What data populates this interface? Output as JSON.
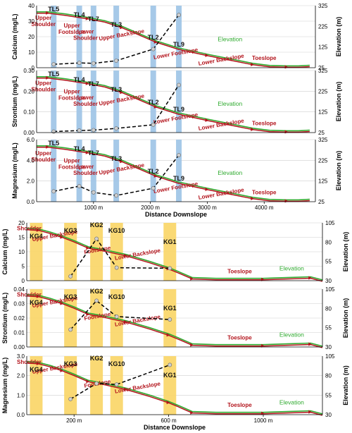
{
  "colors": {
    "elevation": "#2eaa2e",
    "profile": "#b3141c",
    "data_line": "#000000",
    "top_band": "#9cc3e6",
    "bottom_band": "#f9d565"
  },
  "chart_data": [
    {
      "type": "line",
      "group": "top",
      "ylabel": "Calcium (mg/L)",
      "ylabel_right": "Elevation (m)",
      "xlim": [
        0,
        4900
      ],
      "ylim": [
        0,
        40
      ],
      "yticks": [
        0,
        10,
        20,
        30,
        40
      ],
      "ylim_right": [
        25,
        325
      ],
      "yticks_right": [
        25,
        125,
        225,
        325
      ],
      "sites": [
        {
          "name": "TL5",
          "x": 300
        },
        {
          "name": "TL4",
          "x": 750
        },
        {
          "name": "TL7",
          "x": 1000
        },
        {
          "name": "TL3",
          "x": 1400
        },
        {
          "name": "TL2",
          "x": 2050
        },
        {
          "name": "TL9",
          "x": 2500
        }
      ],
      "series": [
        {
          "values": [
            [
              300,
              2.2
            ],
            [
              750,
              3.1
            ],
            [
              1000,
              2.8
            ],
            [
              1400,
              4.5
            ],
            [
              2050,
              12.0
            ],
            [
              2500,
              34.0
            ]
          ]
        }
      ],
      "elevation": [
        [
          0,
          295
        ],
        [
          200,
          295
        ],
        [
          500,
          285
        ],
        [
          900,
          268
        ],
        [
          1200,
          252
        ],
        [
          1500,
          225
        ],
        [
          1800,
          190
        ],
        [
          2100,
          155
        ],
        [
          2500,
          120
        ],
        [
          3000,
          90
        ],
        [
          3400,
          68
        ],
        [
          3800,
          46
        ],
        [
          4100,
          36
        ],
        [
          4400,
          34
        ],
        [
          4600,
          34
        ],
        [
          4800,
          37
        ]
      ],
      "zone_labels": [
        {
          "text": "Upper Shoulder",
          "x": 120,
          "y": 31
        },
        {
          "text": "Upper Footslope",
          "x": 620,
          "y": 26
        },
        {
          "text": "Lower Shoulder",
          "x": 860,
          "y": 22
        },
        {
          "text": "Upper Backslope",
          "x": 1500,
          "y": 20
        },
        {
          "text": "Lower Footslope",
          "x": 2450,
          "y": 8
        },
        {
          "text": "Lower Backslope",
          "x": 3250,
          "y": 4
        },
        {
          "text": "Toeslope",
          "x": 4000,
          "y": 5
        }
      ],
      "elevation_label": {
        "text": "Elevation",
        "x": 3400,
        "y": 17
      }
    },
    {
      "type": "line",
      "group": "top",
      "ylabel": "Strontium (mg/L)",
      "ylabel_right": "Elevation (m)",
      "xlim": [
        0,
        4900
      ],
      "ylim": [
        0,
        0.3
      ],
      "yticks": [
        0,
        0.1,
        0.2,
        0.3
      ],
      "yticks_fmt": 2,
      "ylim_right": [
        25,
        325
      ],
      "yticks_right": [
        25,
        125,
        225,
        325
      ],
      "sites": [
        {
          "name": "TL5",
          "x": 300
        },
        {
          "name": "TL4",
          "x": 750
        },
        {
          "name": "TL7",
          "x": 1000
        },
        {
          "name": "TL3",
          "x": 1400
        },
        {
          "name": "TL2",
          "x": 2050
        },
        {
          "name": "TL9",
          "x": 2500
        }
      ],
      "series": [
        {
          "values": [
            [
              300,
              0.005
            ],
            [
              750,
              0.01
            ],
            [
              1000,
              0.012
            ],
            [
              1400,
              0.02
            ],
            [
              2050,
              0.038
            ],
            [
              2500,
              0.23
            ]
          ]
        }
      ],
      "elevation": [
        [
          0,
          295
        ],
        [
          200,
          295
        ],
        [
          500,
          285
        ],
        [
          900,
          268
        ],
        [
          1200,
          252
        ],
        [
          1500,
          225
        ],
        [
          1800,
          190
        ],
        [
          2100,
          155
        ],
        [
          2500,
          120
        ],
        [
          3000,
          90
        ],
        [
          3400,
          68
        ],
        [
          3800,
          46
        ],
        [
          4100,
          36
        ],
        [
          4400,
          34
        ],
        [
          4600,
          34
        ],
        [
          4800,
          37
        ]
      ],
      "zone_labels": [
        {
          "text": "Upper Shoulder",
          "x": 120,
          "y": 0.23
        },
        {
          "text": "Upper Footslope",
          "x": 620,
          "y": 0.19
        },
        {
          "text": "Lower Shoulder",
          "x": 860,
          "y": 0.16
        },
        {
          "text": "Upper Backslope",
          "x": 1500,
          "y": 0.15
        },
        {
          "text": "Lower Footslope",
          "x": 2450,
          "y": 0.06
        },
        {
          "text": "Lower Backslope",
          "x": 3250,
          "y": 0.03
        },
        {
          "text": "Toeslope",
          "x": 4000,
          "y": 0.035
        }
      ],
      "elevation_label": {
        "text": "Elevation",
        "x": 3400,
        "y": 0.13
      }
    },
    {
      "type": "line",
      "group": "top",
      "ylabel": "Magnesium (mg/L)",
      "ylabel_right": "Elevation (m)",
      "xlabel": "Distance Downslope",
      "xlim": [
        0,
        4900
      ],
      "xticks": [
        1000,
        2000,
        3000,
        4000
      ],
      "xtick_labels": [
        "1000 m",
        "2000 m",
        "3000 m",
        "4000 m"
      ],
      "ylim": [
        0,
        6
      ],
      "yticks": [
        0,
        2,
        4,
        6
      ],
      "yticks_fmt": 1,
      "ylim_right": [
        25,
        325
      ],
      "yticks_right": [
        25,
        125,
        225,
        325
      ],
      "sites": [
        {
          "name": "TL5",
          "x": 300
        },
        {
          "name": "TL4",
          "x": 750
        },
        {
          "name": "TL7",
          "x": 1000
        },
        {
          "name": "TL3",
          "x": 1400
        },
        {
          "name": "TL2",
          "x": 2050
        },
        {
          "name": "TL9",
          "x": 2500
        }
      ],
      "series": [
        {
          "values": [
            [
              300,
              1.0
            ],
            [
              750,
              1.5
            ],
            [
              1000,
              0.9
            ],
            [
              1400,
              0.6
            ],
            [
              2050,
              1.3
            ],
            [
              2500,
              4.5
            ]
          ]
        }
      ],
      "elevation": [
        [
          0,
          295
        ],
        [
          200,
          295
        ],
        [
          500,
          285
        ],
        [
          900,
          268
        ],
        [
          1200,
          252
        ],
        [
          1500,
          225
        ],
        [
          1800,
          190
        ],
        [
          2100,
          155
        ],
        [
          2500,
          120
        ],
        [
          3000,
          90
        ],
        [
          3400,
          68
        ],
        [
          3800,
          46
        ],
        [
          4100,
          36
        ],
        [
          4400,
          34
        ],
        [
          4600,
          34
        ],
        [
          4800,
          37
        ]
      ],
      "zone_labels": [
        {
          "text": "Upper Shoulder",
          "x": 120,
          "y": 4.5
        },
        {
          "text": "Upper Footslope",
          "x": 620,
          "y": 3.8
        },
        {
          "text": "Lower Shoulder",
          "x": 860,
          "y": 3.2
        },
        {
          "text": "Upper Backslope",
          "x": 1500,
          "y": 3.0
        },
        {
          "text": "Lower Footslope",
          "x": 2450,
          "y": 1.2
        },
        {
          "text": "Lower Backslope",
          "x": 3250,
          "y": 0.6
        },
        {
          "text": "Toeslope",
          "x": 4000,
          "y": 0.7
        }
      ],
      "elevation_label": {
        "text": "Elevation",
        "x": 3400,
        "y": 2.6
      }
    },
    {
      "type": "line",
      "group": "bottom",
      "ylabel": "Calcium (mg/L)",
      "ylabel_right": "Elevation (m)",
      "xlim": [
        0,
        1250
      ],
      "ylim": [
        0,
        20
      ],
      "yticks": [
        0,
        5,
        10,
        15,
        20
      ],
      "ylim_right": [
        30,
        105
      ],
      "yticks_right": [
        30,
        55,
        80,
        105
      ],
      "sites": [
        {
          "name": "KG4",
          "x": 40
        },
        {
          "name": "KG3",
          "x": 185
        },
        {
          "name": "KG2",
          "x": 295
        },
        {
          "name": "KG10",
          "x": 380
        },
        {
          "name": "KG1",
          "x": 605
        }
      ],
      "series": [
        {
          "values": [
            [
              185,
              1.5
            ],
            [
              295,
              14.5
            ],
            [
              380,
              4.5
            ],
            [
              605,
              4.3
            ]
          ]
        }
      ],
      "elevation": [
        [
          0,
          98
        ],
        [
          50,
          97
        ],
        [
          100,
          93
        ],
        [
          150,
          88
        ],
        [
          200,
          82
        ],
        [
          260,
          74
        ],
        [
          330,
          70
        ],
        [
          420,
          64
        ],
        [
          520,
          55
        ],
        [
          600,
          47
        ],
        [
          640,
          42
        ],
        [
          700,
          34
        ],
        [
          800,
          33
        ],
        [
          1000,
          33
        ],
        [
          1100,
          34
        ],
        [
          1200,
          35
        ],
        [
          1250,
          31
        ]
      ],
      "zone_labels": [
        {
          "text": "Shoulder",
          "x": 10,
          "y": 17.5
        },
        {
          "text": "Upper Backslope",
          "x": 120,
          "y": 15
        },
        {
          "text": "Footslope",
          "x": 300,
          "y": 10
        },
        {
          "text": "Lower Backslope",
          "x": 470,
          "y": 8.5
        },
        {
          "text": "Toeslope",
          "x": 900,
          "y": 2.6
        }
      ],
      "elevation_label": {
        "text": "Elevation",
        "x": 1120,
        "y": 3.5
      }
    },
    {
      "type": "line",
      "group": "bottom",
      "ylabel": "Strontium (mg/L)",
      "ylabel_right": "Elevation (m)",
      "xlim": [
        0,
        1250
      ],
      "ylim": [
        0,
        0.04
      ],
      "yticks": [
        0,
        0.01,
        0.02,
        0.03,
        0.04
      ],
      "yticks_fmt": 2,
      "ylim_right": [
        30,
        105
      ],
      "yticks_right": [
        30,
        55,
        80,
        105
      ],
      "sites": [
        {
          "name": "KG4",
          "x": 40
        },
        {
          "name": "KG3",
          "x": 185
        },
        {
          "name": "KG2",
          "x": 295
        },
        {
          "name": "KG10",
          "x": 380
        },
        {
          "name": "KG1",
          "x": 605
        }
      ],
      "series": [
        {
          "values": [
            [
              185,
              0.012
            ],
            [
              295,
              0.032
            ],
            [
              380,
              0.021
            ],
            [
              605,
              0.019
            ]
          ]
        }
      ],
      "elevation": [
        [
          0,
          98
        ],
        [
          50,
          97
        ],
        [
          100,
          93
        ],
        [
          150,
          88
        ],
        [
          200,
          82
        ],
        [
          260,
          74
        ],
        [
          330,
          70
        ],
        [
          420,
          64
        ],
        [
          520,
          55
        ],
        [
          600,
          47
        ],
        [
          640,
          42
        ],
        [
          700,
          34
        ],
        [
          800,
          33
        ],
        [
          1000,
          33
        ],
        [
          1100,
          34
        ],
        [
          1200,
          35
        ],
        [
          1250,
          31
        ]
      ],
      "zone_labels": [
        {
          "text": "Shoulder",
          "x": 10,
          "y": 0.035
        },
        {
          "text": "Upper Backslope",
          "x": 120,
          "y": 0.03
        },
        {
          "text": "Footslope",
          "x": 300,
          "y": 0.02
        },
        {
          "text": "Lower Backslope",
          "x": 470,
          "y": 0.017
        },
        {
          "text": "Toeslope",
          "x": 900,
          "y": 0.0052
        }
      ],
      "elevation_label": {
        "text": "Elevation",
        "x": 1120,
        "y": 0.007
      }
    },
    {
      "type": "line",
      "group": "bottom",
      "ylabel": "Magnesium (mg/L)",
      "ylabel_right": "Elevation (m)",
      "xlabel": "Distance Downslope",
      "xlim": [
        0,
        1250
      ],
      "xticks": [
        200,
        600,
        1000
      ],
      "xtick_labels": [
        "200 m",
        "600 m",
        "1000 m"
      ],
      "ylim": [
        0,
        3
      ],
      "yticks": [
        0,
        1,
        2,
        3
      ],
      "yticks_fmt": 1,
      "ylim_right": [
        30,
        105
      ],
      "yticks_right": [
        30,
        55,
        80,
        105
      ],
      "sites": [
        {
          "name": "KG4",
          "x": 40
        },
        {
          "name": "KG3",
          "x": 185
        },
        {
          "name": "KG2",
          "x": 295
        },
        {
          "name": "KG10",
          "x": 380
        },
        {
          "name": "KG1",
          "x": 605
        }
      ],
      "series": [
        {
          "values": [
            [
              185,
              0.8
            ],
            [
              295,
              1.6
            ],
            [
              380,
              1.55
            ],
            [
              605,
              2.55
            ]
          ]
        }
      ],
      "elevation": [
        [
          0,
          98
        ],
        [
          50,
          97
        ],
        [
          100,
          93
        ],
        [
          150,
          88
        ],
        [
          200,
          82
        ],
        [
          260,
          74
        ],
        [
          330,
          70
        ],
        [
          420,
          64
        ],
        [
          520,
          55
        ],
        [
          600,
          47
        ],
        [
          640,
          42
        ],
        [
          700,
          34
        ],
        [
          800,
          33
        ],
        [
          1000,
          33
        ],
        [
          1100,
          34
        ],
        [
          1200,
          35
        ],
        [
          1250,
          31
        ]
      ],
      "zone_labels": [
        {
          "text": "Shoulder",
          "x": 10,
          "y": 2.6
        },
        {
          "text": "Upper Backslope",
          "x": 120,
          "y": 2.3
        },
        {
          "text": "Footslope",
          "x": 300,
          "y": 1.5
        },
        {
          "text": "Lower Backslope",
          "x": 470,
          "y": 1.3
        },
        {
          "text": "Toeslope",
          "x": 900,
          "y": 0.39
        }
      ],
      "elevation_label": {
        "text": "Elevation",
        "x": 1120,
        "y": 0.53
      }
    }
  ]
}
